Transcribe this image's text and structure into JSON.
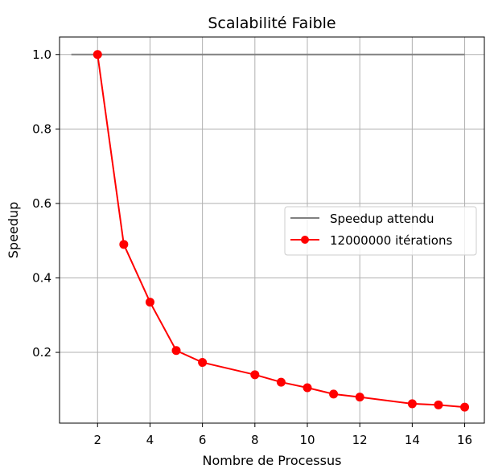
{
  "chart_data": {
    "type": "line",
    "title": "Scalabilité Faible",
    "xlabel": "Nombre de Processus",
    "ylabel": "Speedup",
    "xlim": [
      0.55,
      16.75
    ],
    "ylim": [
      0.01,
      1.047
    ],
    "xticks": [
      2,
      4,
      6,
      8,
      10,
      12,
      14,
      16
    ],
    "yticks": [
      0.2,
      0.4,
      0.6,
      0.8,
      1.0
    ],
    "xtick_labels": [
      "2",
      "4",
      "6",
      "8",
      "10",
      "12",
      "14",
      "16"
    ],
    "ytick_labels": [
      "0.2",
      "0.4",
      "0.6",
      "0.8",
      "1.0"
    ],
    "grid": true,
    "legend_position": "center-right",
    "series": [
      {
        "name": "Speedup attendu",
        "color": "#808080",
        "marker": "none",
        "x": [
          1,
          16
        ],
        "y": [
          1.0,
          1.0
        ]
      },
      {
        "name": "12000000 itérations",
        "color": "#ff0000",
        "marker": "circle",
        "x": [
          2,
          3,
          4,
          5,
          6,
          8,
          9,
          10,
          11,
          12,
          14,
          15,
          16
        ],
        "y": [
          1.0,
          0.49,
          0.335,
          0.205,
          0.173,
          0.14,
          0.12,
          0.105,
          0.088,
          0.08,
          0.062,
          0.059,
          0.053
        ]
      }
    ]
  }
}
